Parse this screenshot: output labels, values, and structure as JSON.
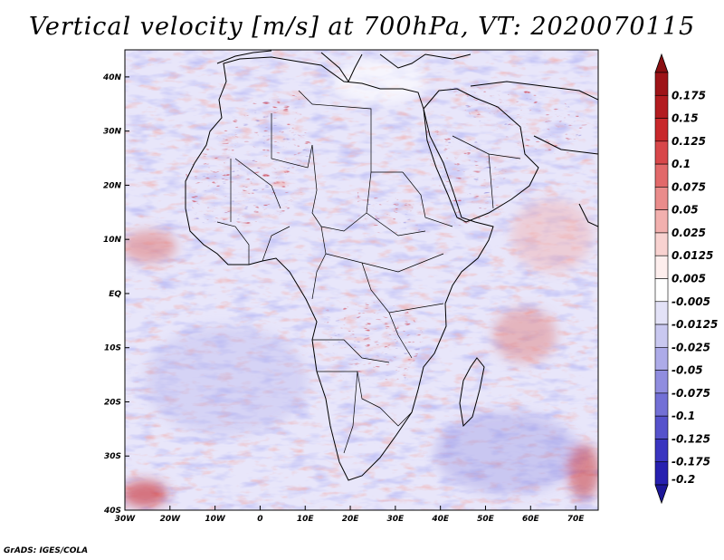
{
  "title": "Vertical velocity [m/s] at 700hPa, VT: 2020070115",
  "credit": "GrADS: IGES/COLA",
  "map": {
    "variable": "Vertical velocity",
    "units": "m/s",
    "level": "700hPa",
    "valid_time": "2020070115",
    "lon_range": [
      -30,
      75
    ],
    "lat_range": [
      -40,
      45
    ],
    "xticks": [
      {
        "value": -30,
        "label": "30W"
      },
      {
        "value": -20,
        "label": "20W"
      },
      {
        "value": -10,
        "label": "10W"
      },
      {
        "value": 0,
        "label": "0"
      },
      {
        "value": 10,
        "label": "10E"
      },
      {
        "value": 20,
        "label": "20E"
      },
      {
        "value": 30,
        "label": "30E"
      },
      {
        "value": 40,
        "label": "40E"
      },
      {
        "value": 50,
        "label": "50E"
      },
      {
        "value": 60,
        "label": "60E"
      },
      {
        "value": 70,
        "label": "70E"
      }
    ],
    "yticks": [
      {
        "value": 40,
        "label": "40N"
      },
      {
        "value": 30,
        "label": "30N"
      },
      {
        "value": 20,
        "label": "20N"
      },
      {
        "value": 10,
        "label": "10N"
      },
      {
        "value": 0,
        "label": "EQ"
      },
      {
        "value": -10,
        "label": "10S"
      },
      {
        "value": -20,
        "label": "20S"
      },
      {
        "value": -30,
        "label": "30S"
      },
      {
        "value": -40,
        "label": "40S"
      }
    ]
  },
  "colorbar": {
    "levels": [
      {
        "label": "0.175",
        "color": "#9e1418"
      },
      {
        "label": "0.15",
        "color": "#b31c20"
      },
      {
        "label": "0.125",
        "color": "#c8282b"
      },
      {
        "label": "0.1",
        "color": "#d8474a"
      },
      {
        "label": "0.075",
        "color": "#e2696a"
      },
      {
        "label": "0.05",
        "color": "#ea8c8b"
      },
      {
        "label": "0.025",
        "color": "#f2b0ae"
      },
      {
        "label": "0.0125",
        "color": "#f8d2d0"
      },
      {
        "label": "0.005",
        "color": "#fdeeed"
      },
      {
        "label": "-0.005",
        "color": "#ffffff"
      },
      {
        "label": "-0.0125",
        "color": "#e3e2f7"
      },
      {
        "label": "-0.025",
        "color": "#c9c8f0"
      },
      {
        "label": "-0.05",
        "color": "#adabe8"
      },
      {
        "label": "-0.075",
        "color": "#908ddf"
      },
      {
        "label": "-0.1",
        "color": "#7370d6"
      },
      {
        "label": "-0.125",
        "color": "#5652cc"
      },
      {
        "label": "-0.175",
        "color": "#3a35c0"
      },
      {
        "label": "-0.2",
        "color": "#2720b0"
      }
    ],
    "top_arrow_color": "#8a0f12",
    "bottom_arrow_color": "#1d1799"
  }
}
